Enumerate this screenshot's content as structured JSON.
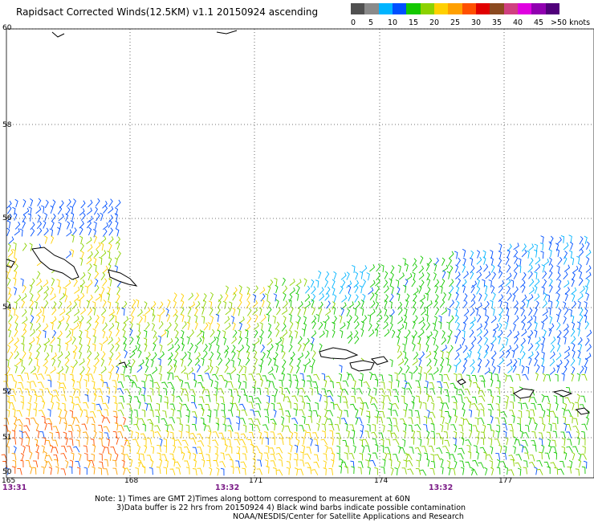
{
  "title": "Rapidsact Corrected Winds(12.5KM) v1.1 20150924 ascending",
  "legend": {
    "colors": [
      "#505050",
      "#8a8a8a",
      "#00b4ff",
      "#0050ff",
      "#14c800",
      "#8cd200",
      "#ffd000",
      "#ffa000",
      "#ff5000",
      "#e00000",
      "#8b4a20",
      "#d04080",
      "#e000e0",
      "#9000b0",
      "#50007a"
    ],
    "labels": [
      "0",
      "5",
      "10",
      "15",
      "20",
      "25",
      "30",
      "35",
      "40",
      "45",
      ">50 knots"
    ]
  },
  "map": {
    "lat_labels": [
      "60",
      "58",
      "56",
      "54",
      "52",
      "51",
      "50"
    ],
    "lon_labels": [
      "165",
      "168",
      "171",
      "174",
      "177"
    ],
    "time_labels": [
      "13:31",
      "13:32",
      "13:32"
    ]
  },
  "notes": {
    "line1": "Note: 1) Times are GMT 2)Times along bottom correspond to measurement at 60N",
    "line2": "3)Data buffer is 22 hrs from 20150924 4) Black wind barbs indicate possible contamination",
    "line3": "NOAA/NESDIS/Center for Satellite Applications and Research"
  }
}
